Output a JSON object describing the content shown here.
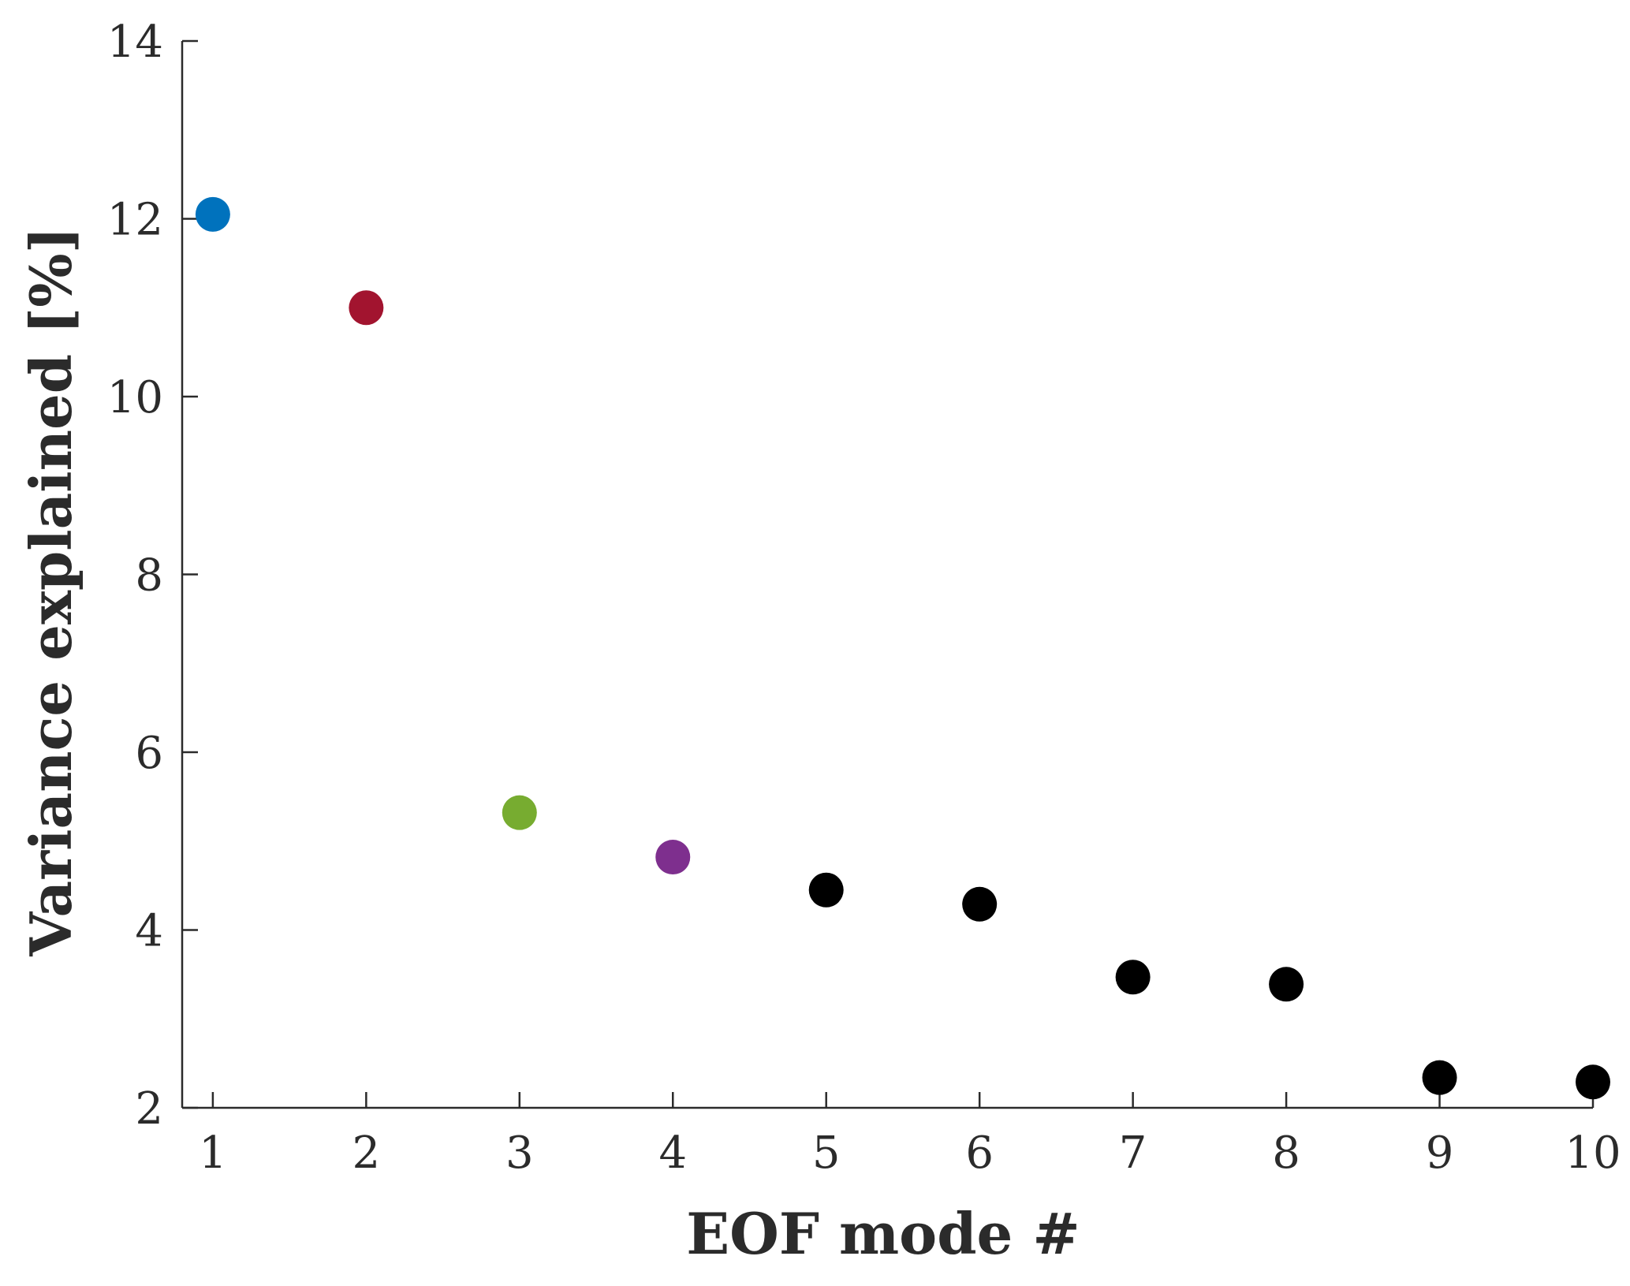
{
  "chart_data": {
    "type": "scatter",
    "title": "",
    "xlabel": "EOF mode #",
    "ylabel": "Variance explained [%]",
    "xlim": [
      0.8,
      10
    ],
    "ylim": [
      2,
      14
    ],
    "xticks": [
      1,
      2,
      3,
      4,
      5,
      6,
      7,
      8,
      9,
      10
    ],
    "yticks": [
      2,
      4,
      6,
      8,
      10,
      12,
      14
    ],
    "grid": false,
    "legend": "none",
    "points": [
      {
        "x": 1,
        "y": 12.05,
        "color": "#0072BD"
      },
      {
        "x": 2,
        "y": 11.0,
        "color": "#A2142F"
      },
      {
        "x": 3,
        "y": 5.32,
        "color": "#77AC30"
      },
      {
        "x": 4,
        "y": 4.82,
        "color": "#7E2F8E"
      },
      {
        "x": 5,
        "y": 4.45,
        "color": "#000000"
      },
      {
        "x": 6,
        "y": 4.29,
        "color": "#000000"
      },
      {
        "x": 7,
        "y": 3.47,
        "color": "#000000"
      },
      {
        "x": 8,
        "y": 3.39,
        "color": "#000000"
      },
      {
        "x": 9,
        "y": 2.34,
        "color": "#000000"
      },
      {
        "x": 10,
        "y": 2.29,
        "color": "#000000"
      }
    ]
  }
}
